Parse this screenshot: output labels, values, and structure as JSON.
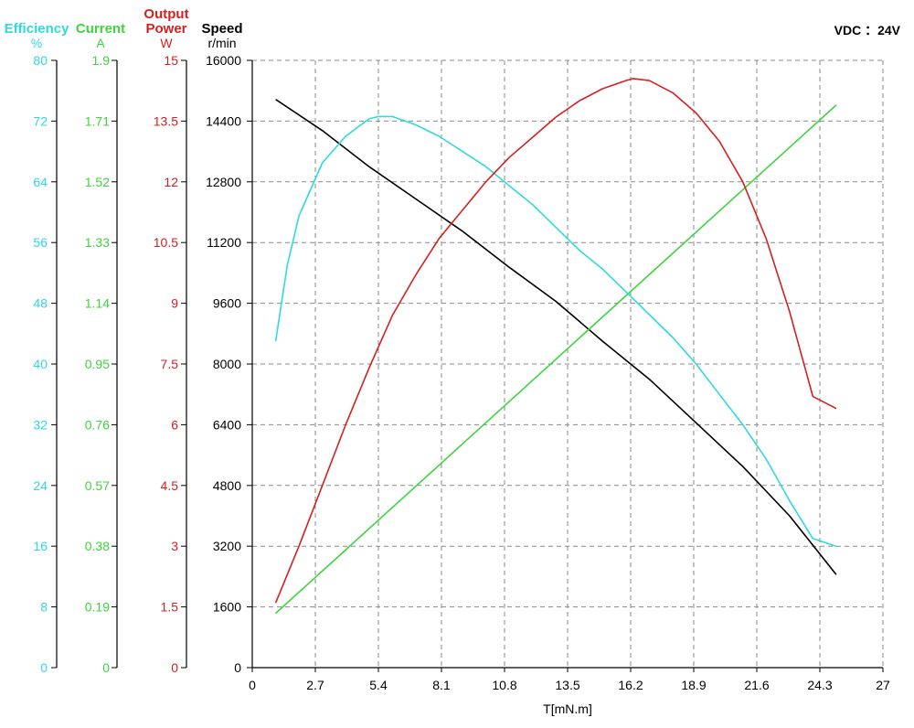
{
  "chart_data": {
    "type": "line",
    "annotation": "VDC ：24V",
    "xlabel": "T[mN.m]",
    "x_ticks": [
      "0",
      "2.7",
      "5.4",
      "8.1",
      "10.8",
      "13.5",
      "16.2",
      "18.9",
      "21.6",
      "24.3",
      "27"
    ],
    "xlim": [
      0,
      27
    ],
    "grid": true,
    "axes": [
      {
        "key": "efficiency",
        "title": "Efficiency",
        "unit": "%",
        "color": "#2fd9de",
        "ticks": [
          "0",
          "8",
          "16",
          "24",
          "32",
          "40",
          "48",
          "56",
          "64",
          "72",
          "80"
        ],
        "range": [
          0,
          80
        ]
      },
      {
        "key": "current",
        "title": "Current",
        "unit": "A",
        "color": "#3ed43e",
        "ticks": [
          "0",
          "0.19",
          "0.38",
          "0.57",
          "0.76",
          "0.95",
          "1.14",
          "1.33",
          "1.52",
          "1.71",
          "1.9"
        ],
        "range": [
          0,
          1.9
        ]
      },
      {
        "key": "power",
        "title": "Output Power",
        "unit": "W",
        "color": "#d42020",
        "ticks": [
          "0",
          "1.5",
          "3",
          "4.5",
          "6",
          "7.5",
          "9",
          "10.5",
          "12",
          "13.5",
          "15"
        ],
        "range": [
          0,
          15
        ]
      },
      {
        "key": "speed",
        "title": "Speed",
        "unit": "r/min",
        "color": "#000000",
        "ticks": [
          "0",
          "1600",
          "3200",
          "4800",
          "6400",
          "8000",
          "9600",
          "11200",
          "12800",
          "14400",
          "16000"
        ],
        "range": [
          0,
          16000
        ]
      }
    ],
    "series": [
      {
        "axis": "speed",
        "color": "#000000",
        "x": [
          1.0,
          3.0,
          5.0,
          7.0,
          9.0,
          11.0,
          13.0,
          15.0,
          17.0,
          19.0,
          21.0,
          23.0,
          25.0
        ],
        "y": [
          14970,
          14150,
          13200,
          12350,
          11500,
          10550,
          9650,
          8600,
          7600,
          6450,
          5300,
          4000,
          2450
        ]
      },
      {
        "axis": "current",
        "color": "#3ed43e",
        "x": [
          1.0,
          25.0
        ],
        "y": [
          0.17,
          1.76
        ]
      },
      {
        "axis": "efficiency",
        "color": "#2fd9de",
        "x": [
          1.0,
          1.5,
          2.0,
          3.0,
          4.0,
          5.0,
          5.4,
          6.0,
          7.0,
          8.0,
          9.0,
          10.0,
          11.0,
          12.0,
          13.0,
          14.0,
          15.0,
          16.0,
          17.0,
          18.0,
          19.0,
          20.0,
          21.0,
          22.0,
          23.0,
          24.0,
          25.0
        ],
        "y": [
          43.0,
          53.0,
          59.5,
          66.5,
          70.0,
          72.3,
          72.6,
          72.6,
          71.5,
          70.0,
          68.0,
          66.0,
          63.5,
          61.0,
          58.0,
          55.0,
          52.5,
          49.5,
          46.5,
          43.5,
          40.0,
          36.0,
          32.0,
          27.5,
          22.0,
          17.0,
          16.0
        ]
      },
      {
        "axis": "power",
        "color": "#d42020",
        "x": [
          1.0,
          2.0,
          3.0,
          4.0,
          5.0,
          6.0,
          7.0,
          8.0,
          9.0,
          10.0,
          11.0,
          12.0,
          13.0,
          14.0,
          15.0,
          16.0,
          16.3,
          17.0,
          18.0,
          19.0,
          20.0,
          21.0,
          22.0,
          23.0,
          24.0,
          25.0
        ],
        "y": [
          1.6,
          3.0,
          4.5,
          6.0,
          7.4,
          8.7,
          9.7,
          10.6,
          11.3,
          12.0,
          12.6,
          13.1,
          13.6,
          14.0,
          14.3,
          14.5,
          14.55,
          14.5,
          14.2,
          13.7,
          13.0,
          12.0,
          10.6,
          8.8,
          6.7,
          6.4
        ]
      }
    ]
  }
}
